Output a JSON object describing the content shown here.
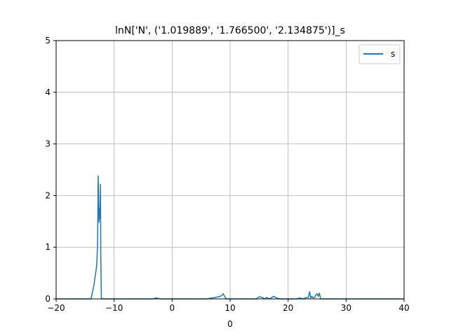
{
  "chart_data": {
    "type": "line",
    "title": "lnN['N', ('1.019889', '1.766500', '2.134875')]_s",
    "xlabel": "0",
    "ylabel": "",
    "xlim": [
      -20,
      40
    ],
    "ylim": [
      0,
      5
    ],
    "xticks": [
      -20,
      -10,
      0,
      10,
      20,
      30,
      40
    ],
    "yticks": [
      0,
      1,
      2,
      3,
      4,
      5
    ],
    "grid": true,
    "legend_position": "top-right",
    "colors": {
      "series": "#1f77b4",
      "grid": "#b0b0b0",
      "axes": "#000000"
    },
    "series": [
      {
        "name": "s",
        "x": [
          -20,
          -14.0,
          -13.5,
          -13.0,
          -12.85,
          -12.75,
          -12.7,
          -12.6,
          -12.55,
          -12.5,
          -12.45,
          -12.35,
          -12.3,
          -12.2,
          -12.0,
          -3.2,
          -2.8,
          -2.5,
          -2.0,
          6.0,
          8.0,
          8.5,
          8.8,
          9.0,
          9.3,
          14.5,
          15.0,
          15.5,
          16.0,
          16.3,
          16.8,
          17.5,
          18.0,
          18.5,
          19.0,
          21.5,
          22.0,
          22.5,
          23.0,
          23.5,
          23.7,
          23.9,
          24.1,
          24.3,
          24.6,
          24.8,
          25.0,
          25.2,
          25.4,
          25.6,
          26.0,
          40
        ],
        "y": [
          0,
          0,
          0.25,
          0.65,
          1.05,
          2.38,
          2.1,
          1.48,
          1.6,
          1.75,
          1.55,
          2.22,
          0.9,
          0,
          0,
          0,
          0.02,
          0.01,
          0,
          0,
          0.04,
          0.06,
          0.1,
          0.06,
          0,
          0,
          0.04,
          0.03,
          0,
          0.03,
          0,
          0.05,
          0.02,
          0,
          0,
          0,
          0.02,
          0,
          0.02,
          0.03,
          0.14,
          0.02,
          0.05,
          0.02,
          0.03,
          0.08,
          0.1,
          0.05,
          0.11,
          0,
          0,
          0
        ]
      }
    ]
  }
}
